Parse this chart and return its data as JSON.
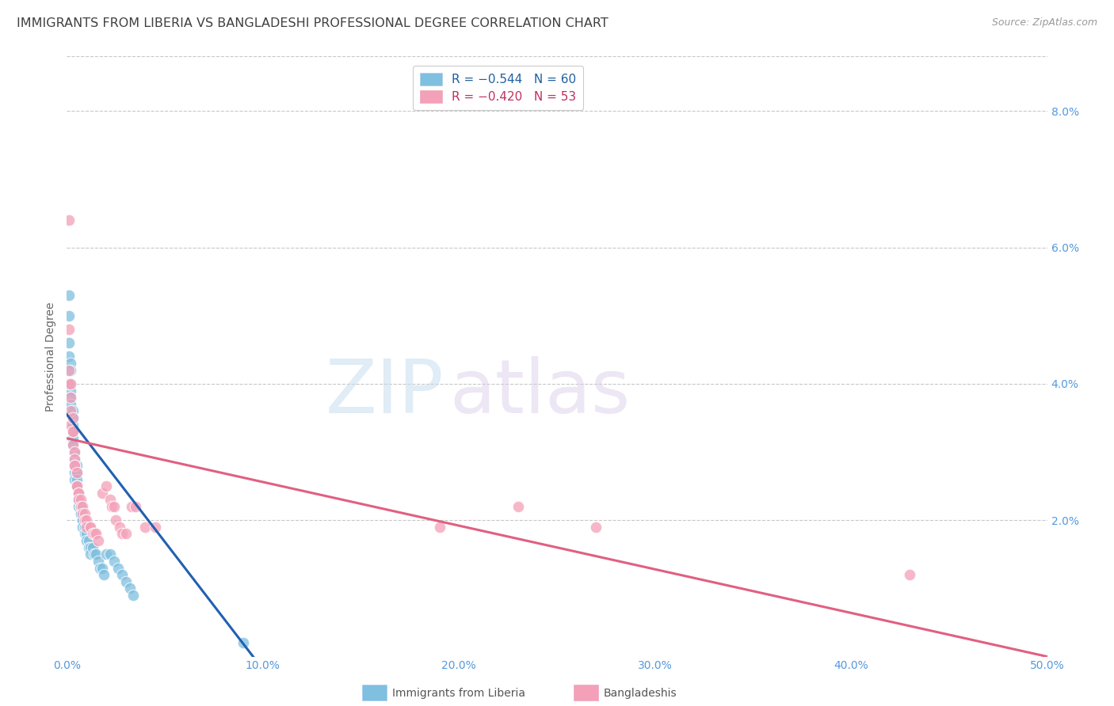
{
  "title": "IMMIGRANTS FROM LIBERIA VS BANGLADESHI PROFESSIONAL DEGREE CORRELATION CHART",
  "source": "Source: ZipAtlas.com",
  "ylabel": "Professional Degree",
  "right_yticks": [
    "8.0%",
    "6.0%",
    "4.0%",
    "2.0%"
  ],
  "right_ytick_vals": [
    0.08,
    0.06,
    0.04,
    0.02
  ],
  "ylim": [
    0.0,
    0.088
  ],
  "xlim": [
    0.0,
    0.5
  ],
  "legend_line1": "R = −0.544   N = 60",
  "legend_line2": "R = −0.420   N = 53",
  "liberia_scatter": [
    [
      0.001,
      0.053
    ],
    [
      0.001,
      0.05
    ],
    [
      0.001,
      0.046
    ],
    [
      0.001,
      0.044
    ],
    [
      0.002,
      0.043
    ],
    [
      0.002,
      0.042
    ],
    [
      0.002,
      0.04
    ],
    [
      0.002,
      0.039
    ],
    [
      0.002,
      0.038
    ],
    [
      0.002,
      0.037
    ],
    [
      0.003,
      0.036
    ],
    [
      0.003,
      0.035
    ],
    [
      0.003,
      0.034
    ],
    [
      0.003,
      0.033
    ],
    [
      0.003,
      0.032
    ],
    [
      0.003,
      0.031
    ],
    [
      0.004,
      0.03
    ],
    [
      0.004,
      0.029
    ],
    [
      0.004,
      0.028
    ],
    [
      0.004,
      0.027
    ],
    [
      0.004,
      0.026
    ],
    [
      0.005,
      0.028
    ],
    [
      0.005,
      0.027
    ],
    [
      0.005,
      0.026
    ],
    [
      0.005,
      0.025
    ],
    [
      0.005,
      0.025
    ],
    [
      0.006,
      0.024
    ],
    [
      0.006,
      0.024
    ],
    [
      0.006,
      0.023
    ],
    [
      0.006,
      0.022
    ],
    [
      0.007,
      0.022
    ],
    [
      0.007,
      0.021
    ],
    [
      0.007,
      0.021
    ],
    [
      0.008,
      0.02
    ],
    [
      0.008,
      0.02
    ],
    [
      0.008,
      0.019
    ],
    [
      0.009,
      0.019
    ],
    [
      0.009,
      0.018
    ],
    [
      0.01,
      0.018
    ],
    [
      0.01,
      0.017
    ],
    [
      0.011,
      0.017
    ],
    [
      0.011,
      0.016
    ],
    [
      0.012,
      0.016
    ],
    [
      0.012,
      0.015
    ],
    [
      0.013,
      0.016
    ],
    [
      0.014,
      0.015
    ],
    [
      0.015,
      0.015
    ],
    [
      0.016,
      0.014
    ],
    [
      0.017,
      0.013
    ],
    [
      0.018,
      0.013
    ],
    [
      0.019,
      0.012
    ],
    [
      0.02,
      0.015
    ],
    [
      0.022,
      0.015
    ],
    [
      0.024,
      0.014
    ],
    [
      0.026,
      0.013
    ],
    [
      0.028,
      0.012
    ],
    [
      0.03,
      0.011
    ],
    [
      0.032,
      0.01
    ],
    [
      0.034,
      0.009
    ],
    [
      0.09,
      0.002
    ]
  ],
  "liberia_trendline_x": [
    0.0,
    0.095
  ],
  "liberia_trendline_y": [
    0.0355,
    0.0
  ],
  "bangladeshi_scatter": [
    [
      0.001,
      0.048
    ],
    [
      0.001,
      0.042
    ],
    [
      0.001,
      0.04
    ],
    [
      0.001,
      0.064
    ],
    [
      0.002,
      0.04
    ],
    [
      0.002,
      0.038
    ],
    [
      0.002,
      0.036
    ],
    [
      0.002,
      0.034
    ],
    [
      0.003,
      0.035
    ],
    [
      0.003,
      0.033
    ],
    [
      0.003,
      0.033
    ],
    [
      0.003,
      0.031
    ],
    [
      0.004,
      0.03
    ],
    [
      0.004,
      0.029
    ],
    [
      0.004,
      0.028
    ],
    [
      0.004,
      0.028
    ],
    [
      0.005,
      0.027
    ],
    [
      0.005,
      0.025
    ],
    [
      0.005,
      0.025
    ],
    [
      0.006,
      0.024
    ],
    [
      0.006,
      0.024
    ],
    [
      0.006,
      0.023
    ],
    [
      0.007,
      0.023
    ],
    [
      0.007,
      0.022
    ],
    [
      0.008,
      0.022
    ],
    [
      0.008,
      0.021
    ],
    [
      0.009,
      0.021
    ],
    [
      0.009,
      0.02
    ],
    [
      0.01,
      0.02
    ],
    [
      0.01,
      0.019
    ],
    [
      0.012,
      0.019
    ],
    [
      0.012,
      0.019
    ],
    [
      0.013,
      0.018
    ],
    [
      0.014,
      0.018
    ],
    [
      0.015,
      0.018
    ],
    [
      0.016,
      0.017
    ],
    [
      0.018,
      0.024
    ],
    [
      0.02,
      0.025
    ],
    [
      0.022,
      0.023
    ],
    [
      0.023,
      0.022
    ],
    [
      0.024,
      0.022
    ],
    [
      0.025,
      0.02
    ],
    [
      0.027,
      0.019
    ],
    [
      0.028,
      0.018
    ],
    [
      0.03,
      0.018
    ],
    [
      0.033,
      0.022
    ],
    [
      0.035,
      0.022
    ],
    [
      0.04,
      0.019
    ],
    [
      0.045,
      0.019
    ],
    [
      0.19,
      0.019
    ],
    [
      0.23,
      0.022
    ],
    [
      0.27,
      0.019
    ],
    [
      0.43,
      0.012
    ]
  ],
  "bangladeshi_trendline_x": [
    0.0,
    0.5
  ],
  "bangladeshi_trendline_y": [
    0.032,
    0.0
  ],
  "blue_color": "#7fbfdf",
  "pink_color": "#f4a0b8",
  "blue_line_color": "#2060b0",
  "pink_line_color": "#e06080",
  "watermark_zip": "ZIP",
  "watermark_atlas": "atlas",
  "background_color": "#ffffff",
  "grid_color": "#c8c8c8",
  "tick_label_color": "#5599dd",
  "title_color": "#404040",
  "ylabel_color": "#666666",
  "source_color": "#999999",
  "title_fontsize": 11.5,
  "source_fontsize": 9,
  "tick_fontsize": 10,
  "legend_fontsize": 11,
  "ylabel_fontsize": 10
}
